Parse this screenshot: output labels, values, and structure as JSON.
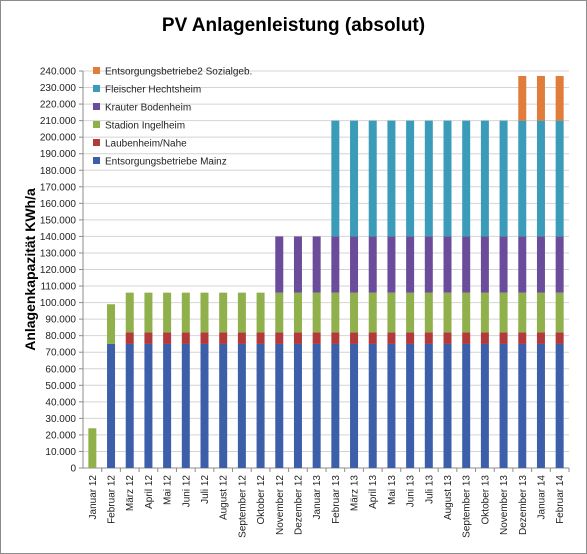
{
  "chart_data": {
    "type": "bar",
    "stacked": true,
    "title": "PV Anlagenleistung (absolut)",
    "xlabel": "",
    "ylabel": "Anlagenkapazität KWh/a",
    "ylim": [
      0,
      240000
    ],
    "ytick_step": 10000,
    "ytick_labels": [
      "0",
      "10.000",
      "20.000",
      "30.000",
      "40.000",
      "50.000",
      "60.000",
      "70.000",
      "80.000",
      "90.000",
      "100.000",
      "110.000",
      "120.000",
      "130.000",
      "140.000",
      "150.000",
      "160.000",
      "170.000",
      "180.000",
      "190.000",
      "200.000",
      "210.000",
      "220.000",
      "230.000",
      "240.000"
    ],
    "grid": true,
    "legend_position": "top-left",
    "categories": [
      "Januar 12",
      "Februar 12",
      "März 12",
      "April 12",
      "Mai 12",
      "Juni 12",
      "Juli 12",
      "August 12",
      "September 12",
      "Oktober 12",
      "November 12",
      "Dezember 12",
      "Januar 13",
      "Februar 13",
      "März 13",
      "April 13",
      "Mai 13",
      "Juni 13",
      "Juli 13",
      "August 13",
      "September 13",
      "Oktober 13",
      "November 13",
      "Dezember 13",
      "Januar 14",
      "Februar 14"
    ],
    "series": [
      {
        "name": "Entsorgungsbetriebe Mainz",
        "color": "#3d5ea8",
        "values": [
          0,
          75000,
          75000,
          75000,
          75000,
          75000,
          75000,
          75000,
          75000,
          75000,
          75000,
          75000,
          75000,
          75000,
          75000,
          75000,
          75000,
          75000,
          75000,
          75000,
          75000,
          75000,
          75000,
          75000,
          75000,
          75000
        ]
      },
      {
        "name": "Laubenheim/Nahe",
        "color": "#b33a3a",
        "values": [
          0,
          0,
          7000,
          7000,
          7000,
          7000,
          7000,
          7000,
          7000,
          7000,
          7000,
          7000,
          7000,
          7000,
          7000,
          7000,
          7000,
          7000,
          7000,
          7000,
          7000,
          7000,
          7000,
          7000,
          7000,
          7000
        ]
      },
      {
        "name": "Stadion Ingelheim",
        "color": "#8fb04a",
        "values": [
          24000,
          24000,
          24000,
          24000,
          24000,
          24000,
          24000,
          24000,
          24000,
          24000,
          24000,
          24000,
          24000,
          24000,
          24000,
          24000,
          24000,
          24000,
          24000,
          24000,
          24000,
          24000,
          24000,
          24000,
          24000,
          24000
        ]
      },
      {
        "name": "Krauter Bodenheim",
        "color": "#6b4c9a",
        "values": [
          0,
          0,
          0,
          0,
          0,
          0,
          0,
          0,
          0,
          0,
          34000,
          34000,
          34000,
          34000,
          34000,
          34000,
          34000,
          34000,
          34000,
          34000,
          34000,
          34000,
          34000,
          34000,
          34000,
          34000
        ]
      },
      {
        "name": "Fleischer Hechtsheim",
        "color": "#3a9cb8",
        "values": [
          0,
          0,
          0,
          0,
          0,
          0,
          0,
          0,
          0,
          0,
          0,
          0,
          0,
          70000,
          70000,
          70000,
          70000,
          70000,
          70000,
          70000,
          70000,
          70000,
          70000,
          70000,
          70000,
          70000
        ]
      },
      {
        "name": "Entsorgungsbetriebe2 Sozialgeb.",
        "color": "#e07d3a",
        "values": [
          0,
          0,
          0,
          0,
          0,
          0,
          0,
          0,
          0,
          0,
          0,
          0,
          0,
          0,
          0,
          0,
          0,
          0,
          0,
          0,
          0,
          0,
          0,
          27000,
          27000,
          27000
        ]
      }
    ]
  }
}
